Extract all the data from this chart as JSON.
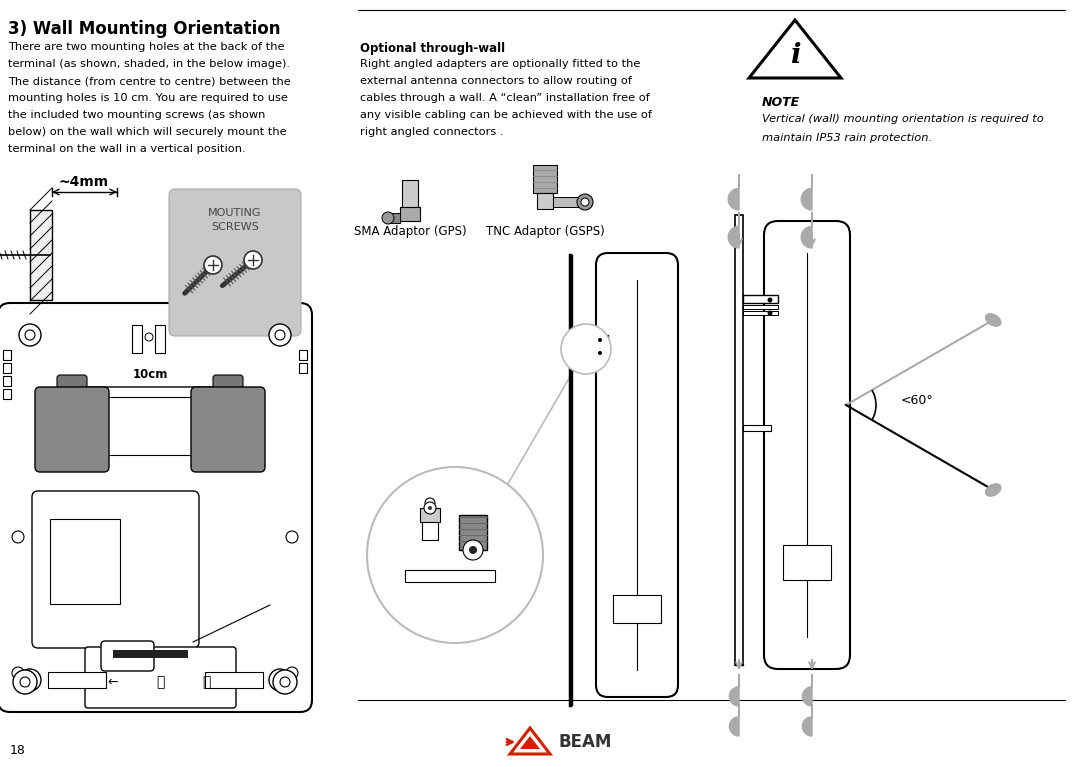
{
  "bg_color": "#ffffff",
  "title": "3) Wall Mounting Orientation",
  "body_lines": [
    "There are two mounting holes at the back of the",
    "terminal (as shown, shaded, in the below image).",
    "The distance (from centre to centre) between the",
    "mounting holes is 10 cm. You are required to use",
    "the included two mounting screws (as shown",
    "below) on the wall which will securely mount the",
    "terminal on the wall in a vertical position."
  ],
  "optional_title": "Optional through-wall",
  "optional_lines": [
    "Right angled adapters are optionally fitted to the",
    "external antenna connectors to allow routing of",
    "cables through a wall. A “clean” installation free of",
    "any visible cabling can be achieved with the use of",
    "right angled connectors ."
  ],
  "note_title": "NOTE",
  "note_lines": [
    "Vertical (wall) mounting orientation is required to",
    "maintain IP53 rain protection."
  ],
  "label_4mm": "~4mm",
  "label_10cm": "10cm",
  "label_mouting1": "MOUTING",
  "label_mouting2": "SCREWS",
  "label_sma": "SMA Adaptor (GPS)",
  "label_tnc": "TNC Adaptor (GSPS)",
  "label_angle": "<60°",
  "page_num": "18",
  "lc": "#000000",
  "gray1": "#888888",
  "gray2": "#aaaaaa",
  "gray3": "#cccccc",
  "gray4": "#666666",
  "screw_box": "#c8c8c8",
  "fig_width": 10.76,
  "fig_height": 7.67
}
